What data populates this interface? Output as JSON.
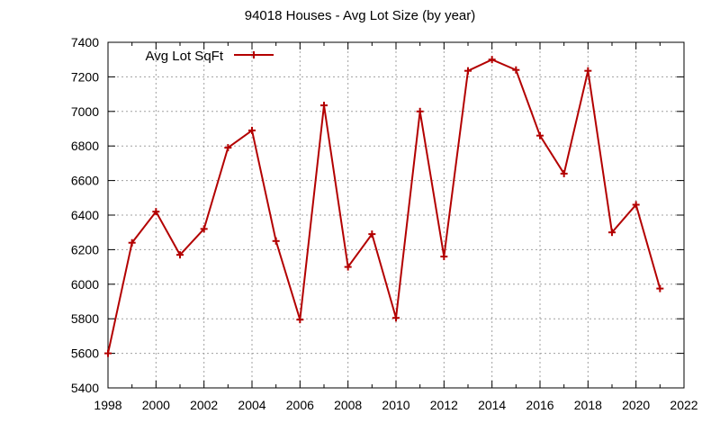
{
  "chart_data": {
    "type": "line",
    "title": "94018 Houses - Avg Lot Size (by year)",
    "xlabel": "",
    "ylabel": "",
    "xlim": [
      1998,
      2022
    ],
    "ylim": [
      5400,
      7400
    ],
    "xticks": [
      1998,
      2000,
      2002,
      2004,
      2006,
      2008,
      2010,
      2012,
      2014,
      2016,
      2018,
      2020,
      2022
    ],
    "yticks": [
      5400,
      5600,
      5800,
      6000,
      6200,
      6400,
      6600,
      6800,
      7000,
      7200,
      7400
    ],
    "grid": true,
    "legend_position": "top-left",
    "series": [
      {
        "name": "Avg Lot SqFt",
        "color": "#b30000",
        "marker": "plus",
        "x": [
          1998,
          1999,
          2000,
          2001,
          2002,
          2003,
          2004,
          2005,
          2006,
          2007,
          2008,
          2009,
          2010,
          2011,
          2012,
          2013,
          2014,
          2015,
          2016,
          2017,
          2018,
          2019,
          2020,
          2021
        ],
        "y": [
          5600,
          6240,
          6420,
          6170,
          6320,
          6790,
          6890,
          6250,
          5795,
          7035,
          6100,
          6290,
          5805,
          7000,
          6160,
          7235,
          7300,
          7240,
          6860,
          6640,
          7235,
          6300,
          6460,
          5975
        ]
      }
    ]
  }
}
